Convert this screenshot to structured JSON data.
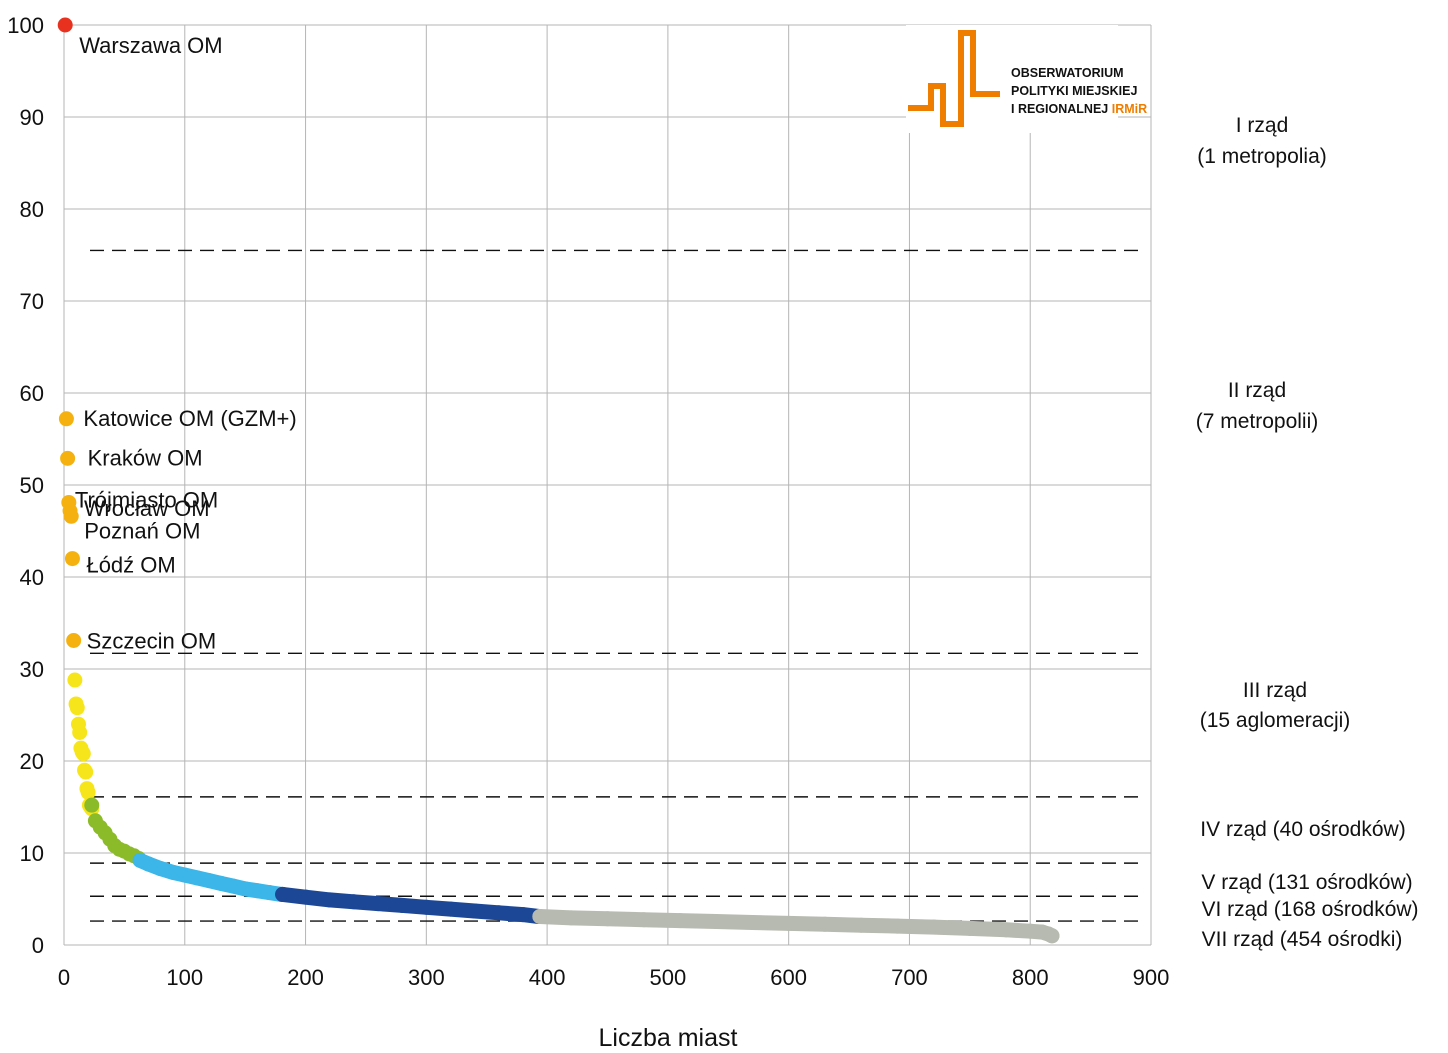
{
  "chart_data": {
    "type": "scatter",
    "title": "",
    "xlabel": "Liczba miast",
    "ylabel": "",
    "xlim": [
      0,
      900
    ],
    "ylim": [
      0,
      100
    ],
    "x_ticks": [
      "0",
      "100",
      "200",
      "300",
      "400",
      "500",
      "600",
      "700",
      "800",
      "900"
    ],
    "y_ticks": [
      "0",
      "10",
      "20",
      "30",
      "40",
      "50",
      "60",
      "70",
      "80",
      "90",
      "100"
    ],
    "grid": true,
    "thresholds": [
      75.5,
      31.7,
      16.1,
      8.9,
      5.3,
      2.6
    ],
    "labeled_points": [
      {
        "label": "Warszawa OM",
        "x": 1,
        "y": 100,
        "color": "#e8321f"
      },
      {
        "label": "Katowice OM (GZM+)",
        "x": 2,
        "y": 57.2,
        "color": "#f5b10f"
      },
      {
        "label": "Kraków OM",
        "x": 3,
        "y": 52.9,
        "color": "#f5b10f"
      },
      {
        "label": "Trójmiasto OM",
        "x": 4,
        "y": 48.1,
        "color": "#f5b10f"
      },
      {
        "label": "Wrocław OM",
        "x": 5,
        "y": 47.2,
        "color": "#f5b10f"
      },
      {
        "label": "Poznań OM",
        "x": 6,
        "y": 46.6,
        "color": "#f5b10f"
      },
      {
        "label": "Łódź OM",
        "x": 7,
        "y": 42.0,
        "color": "#f5b10f"
      },
      {
        "label": "Szczecin OM",
        "x": 8,
        "y": 33.1,
        "color": "#f5b10f"
      }
    ],
    "series": [
      {
        "x": [
          9,
          10,
          11,
          12,
          13,
          14,
          15,
          16,
          17,
          18,
          19,
          20,
          21,
          22,
          23
        ],
        "y": [
          28.8,
          26.2,
          25.8,
          24.0,
          23.1,
          21.4,
          21.0,
          20.8,
          19.0,
          18.8,
          17.0,
          16.6,
          15.2,
          15.0,
          14.8
        ],
        "color": "#f6e51a"
      },
      {
        "x": [
          23,
          26,
          30,
          34,
          38,
          42,
          46,
          50,
          54,
          58,
          62
        ],
        "y": [
          15.2,
          13.5,
          12.8,
          12.2,
          11.5,
          10.8,
          10.4,
          10.2,
          9.9,
          9.7,
          9.4
        ],
        "color": "#8cbb2a"
      },
      {
        "x": [
          63,
          70,
          80,
          90,
          100,
          110,
          120,
          130,
          140,
          150,
          160,
          170,
          180
        ],
        "y": [
          9.2,
          8.8,
          8.3,
          7.9,
          7.6,
          7.3,
          7.0,
          6.7,
          6.4,
          6.1,
          5.9,
          5.7,
          5.5
        ],
        "color": "#3cb6e8"
      },
      {
        "x": [
          181,
          200,
          220,
          240,
          260,
          280,
          300,
          320,
          340,
          360,
          380,
          393
        ],
        "y": [
          5.5,
          5.2,
          4.9,
          4.7,
          4.5,
          4.3,
          4.1,
          3.9,
          3.7,
          3.5,
          3.3,
          3.1
        ],
        "color": "#1c4796"
      },
      {
        "x": [
          394,
          420,
          450,
          480,
          510,
          540,
          570,
          600,
          630,
          660,
          690,
          720,
          750,
          780,
          800,
          810,
          815,
          818
        ],
        "y": [
          3.1,
          2.95,
          2.85,
          2.75,
          2.65,
          2.55,
          2.45,
          2.35,
          2.25,
          2.15,
          2.05,
          1.95,
          1.8,
          1.65,
          1.5,
          1.4,
          1.2,
          1.0
        ],
        "color": "#b7bab0"
      }
    ],
    "rank_labels": [
      {
        "lines": [
          "I rząd",
          "(1 metropolia)"
        ]
      },
      {
        "lines": [
          "II rząd",
          "(7 metropolii)"
        ]
      },
      {
        "lines": [
          "III rząd",
          "(15 aglomeracji)"
        ]
      },
      {
        "lines": [
          "IV rząd (40 ośrodków)"
        ]
      },
      {
        "lines": [
          "V rząd (131 ośrodków)"
        ]
      },
      {
        "lines": [
          "VI rząd (168 ośrodków)"
        ]
      },
      {
        "lines": [
          "VII rząd (454 ośrodki)"
        ]
      }
    ]
  },
  "logo": {
    "line1": "OBSERWATORIUM",
    "line2": "POLITYKI MIEJSKIEJ",
    "line3": "I REGIONALNEJ",
    "line3_accent": "IRMiR",
    "color": "#ef7d00"
  }
}
